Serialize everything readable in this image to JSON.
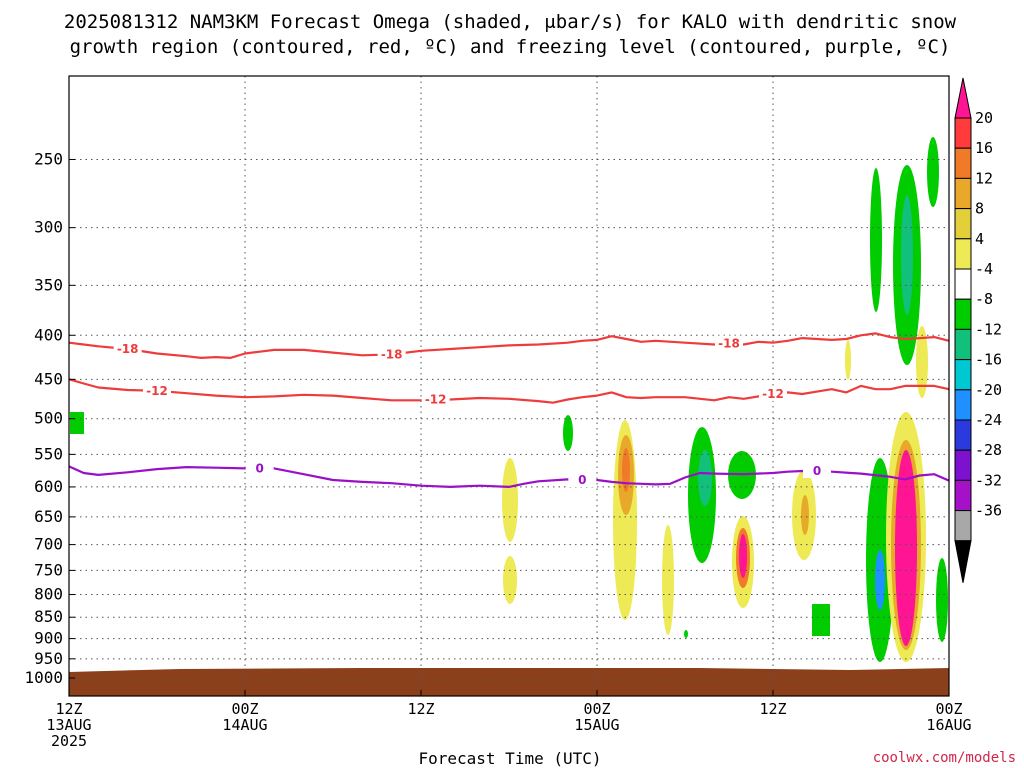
{
  "title_line1": "2025081312 NAM3KM Forecast Omega (shaded, μbar/s) for KALO with dendritic snow",
  "title_line2": "growth region (contoured, red, ºC) and freezing level (contoured, purple, ºC)",
  "credit": "coolwx.com/models",
  "chart_data": {
    "type": "heatmap",
    "xlabel": "Forecast Time (UTC)",
    "x_ticks": [
      {
        "hours": 0,
        "lines": [
          "12Z",
          "13AUG",
          "2025"
        ]
      },
      {
        "hours": 12,
        "lines": [
          "00Z",
          "14AUG"
        ]
      },
      {
        "hours": 24,
        "lines": [
          "12Z"
        ]
      },
      {
        "hours": 36,
        "lines": [
          "00Z",
          "15AUG"
        ]
      },
      {
        "hours": 48,
        "lines": [
          "12Z"
        ]
      },
      {
        "hours": 60,
        "lines": [
          "00Z",
          "16AUG"
        ]
      }
    ],
    "x_range_hours": [
      0,
      60
    ],
    "y_ticks": [
      250,
      300,
      350,
      400,
      450,
      500,
      550,
      600,
      650,
      700,
      750,
      800,
      850,
      900,
      950,
      1000
    ],
    "y_range_hpa": [
      200,
      1000
    ],
    "y_scale": "log-pressure",
    "grid": "dotted",
    "colorbar": {
      "labels": [
        "20",
        "16",
        "12",
        "8",
        "4",
        "-4",
        "-8",
        "-12",
        "-16",
        "-20",
        "-24",
        "-28",
        "-32",
        "-36"
      ],
      "colors": [
        "#ff1493",
        "#ff3b3b",
        "#f07a28",
        "#e8a92a",
        "#e3cf3a",
        "#eeea55",
        "#ffffff",
        "#00cc00",
        "#11c07a",
        "#00c8d2",
        "#1e90ff",
        "#2a3adf",
        "#7d11d0",
        "#a411c9",
        "#a8a8a8",
        "#000000"
      ]
    },
    "contours": [
      {
        "name": "-18",
        "color": "#ee3c3c",
        "points": [
          [
            0,
            408
          ],
          [
            1,
            410
          ],
          [
            2,
            412
          ],
          [
            4,
            415
          ],
          [
            6,
            420
          ],
          [
            8,
            423
          ],
          [
            9,
            425
          ],
          [
            10,
            424
          ],
          [
            11,
            425
          ],
          [
            12,
            420
          ],
          [
            13,
            418
          ],
          [
            14,
            416
          ],
          [
            16,
            416
          ],
          [
            18,
            419
          ],
          [
            20,
            422
          ],
          [
            22,
            421
          ],
          [
            24,
            417
          ],
          [
            26,
            415
          ],
          [
            28,
            413
          ],
          [
            30,
            411
          ],
          [
            32,
            410
          ],
          [
            34,
            408
          ],
          [
            35,
            406
          ],
          [
            36,
            405
          ],
          [
            37,
            401
          ],
          [
            38,
            404
          ],
          [
            39,
            407
          ],
          [
            40,
            406
          ],
          [
            42,
            408
          ],
          [
            44,
            410
          ],
          [
            45,
            408
          ],
          [
            46,
            410
          ],
          [
            47,
            407
          ],
          [
            48,
            408
          ],
          [
            49,
            406
          ],
          [
            50,
            403
          ],
          [
            51,
            404
          ],
          [
            52,
            405
          ],
          [
            53,
            404
          ],
          [
            54,
            400
          ],
          [
            55,
            398
          ],
          [
            56,
            402
          ],
          [
            57,
            404
          ],
          [
            58,
            403
          ],
          [
            59,
            402
          ],
          [
            60,
            406
          ]
        ],
        "labels": [
          [
            4,
            415
          ],
          [
            22,
            421
          ],
          [
            45,
            409
          ]
        ]
      },
      {
        "name": "-12",
        "color": "#ee3c3c",
        "points": [
          [
            0,
            450
          ],
          [
            1,
            455
          ],
          [
            2,
            460
          ],
          [
            4,
            463
          ],
          [
            6,
            464
          ],
          [
            8,
            467
          ],
          [
            10,
            470
          ],
          [
            12,
            472
          ],
          [
            14,
            471
          ],
          [
            16,
            469
          ],
          [
            18,
            470
          ],
          [
            20,
            473
          ],
          [
            22,
            476
          ],
          [
            24,
            476
          ],
          [
            26,
            475
          ],
          [
            28,
            473
          ],
          [
            30,
            474
          ],
          [
            32,
            477
          ],
          [
            33,
            479
          ],
          [
            34,
            475
          ],
          [
            35,
            472
          ],
          [
            36,
            470
          ],
          [
            37,
            466
          ],
          [
            38,
            472
          ],
          [
            39,
            473
          ],
          [
            40,
            472
          ],
          [
            42,
            472
          ],
          [
            44,
            476
          ],
          [
            45,
            472
          ],
          [
            46,
            474
          ],
          [
            48,
            468
          ],
          [
            49,
            466
          ],
          [
            50,
            468
          ],
          [
            51,
            465
          ],
          [
            52,
            462
          ],
          [
            53,
            466
          ],
          [
            54,
            458
          ],
          [
            55,
            462
          ],
          [
            56,
            462
          ],
          [
            57,
            458
          ],
          [
            58,
            458
          ],
          [
            59,
            458
          ],
          [
            60,
            462
          ]
        ],
        "labels": [
          [
            6,
            464
          ],
          [
            25,
            475
          ],
          [
            48,
            468
          ]
        ]
      },
      {
        "name": "0",
        "color": "#9a10c8",
        "points": [
          [
            0,
            568
          ],
          [
            1,
            578
          ],
          [
            2,
            581
          ],
          [
            4,
            577
          ],
          [
            6,
            572
          ],
          [
            8,
            569
          ],
          [
            10,
            570
          ],
          [
            12,
            571
          ],
          [
            13,
            570
          ],
          [
            14,
            571
          ],
          [
            16,
            580
          ],
          [
            18,
            589
          ],
          [
            20,
            592
          ],
          [
            22,
            594
          ],
          [
            24,
            598
          ],
          [
            26,
            600
          ],
          [
            28,
            598
          ],
          [
            30,
            600
          ],
          [
            31,
            595
          ],
          [
            32,
            591
          ],
          [
            34,
            588
          ],
          [
            36,
            589
          ],
          [
            37,
            592
          ],
          [
            38,
            594
          ],
          [
            40,
            596
          ],
          [
            41,
            595
          ],
          [
            42,
            585
          ],
          [
            43,
            578
          ],
          [
            44,
            579
          ],
          [
            46,
            580
          ],
          [
            48,
            578
          ],
          [
            49,
            576
          ],
          [
            50,
            575
          ],
          [
            52,
            576
          ],
          [
            54,
            579
          ],
          [
            56,
            584
          ],
          [
            57,
            588
          ],
          [
            58,
            582
          ],
          [
            59,
            580
          ],
          [
            60,
            590
          ]
        ],
        "labels": [
          [
            13,
            571
          ],
          [
            35,
            589
          ],
          [
            51,
            575
          ]
        ]
      }
    ]
  }
}
